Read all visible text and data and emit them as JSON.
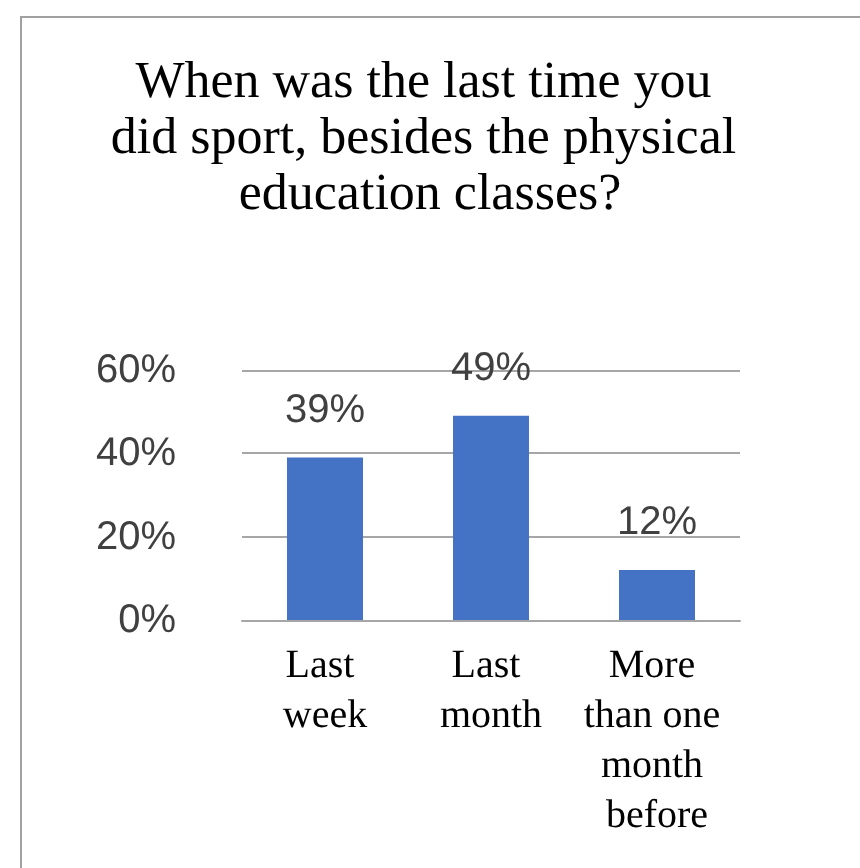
{
  "chart_data": {
    "type": "bar",
    "title": "When was the last time you did sport, besides the physical education classes?",
    "categories": [
      "Last week",
      "Last month",
      "More than one month before"
    ],
    "values": [
      39,
      49,
      12
    ],
    "color": "#4472c4",
    "value_labels": [
      "39%",
      "49%",
      "12%"
    ],
    "ylim": [
      0,
      60
    ],
    "yticks": [
      {
        "value": 0,
        "label": "0%"
      },
      {
        "value": 20,
        "label": "20%"
      },
      {
        "value": 40,
        "label": "40%"
      },
      {
        "value": 60,
        "label": "60%"
      }
    ],
    "grid": "y"
  }
}
